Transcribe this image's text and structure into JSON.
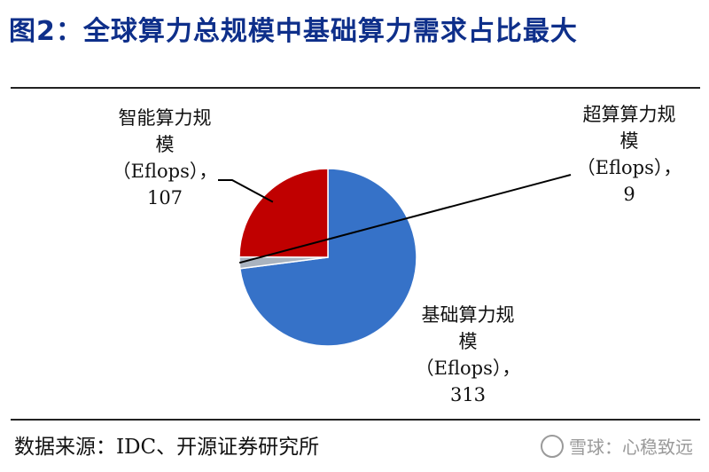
{
  "title": "图2：全球算力总规模中基础算力需求占比最大",
  "source": "数据来源：IDC、开源证券研究所",
  "watermark": "雪球：心稳致远",
  "chart_data": {
    "type": "pie",
    "unit": "Eflops",
    "slices": [
      {
        "name": "基础算力规模",
        "value": 313,
        "color": "#3672c8",
        "label_lines": [
          "基础算力规",
          "模",
          "（Eflops），",
          "313"
        ]
      },
      {
        "name": "超算算力规模",
        "value": 9,
        "color": "#a9b3bf",
        "label_lines": [
          "超算算力规",
          "模",
          "（Eflops），",
          "9"
        ]
      },
      {
        "name": "智能算力规模",
        "value": 107,
        "color": "#c00000",
        "label_lines": [
          "智能算力规",
          "模",
          "（Eflops），",
          "107"
        ]
      }
    ]
  }
}
